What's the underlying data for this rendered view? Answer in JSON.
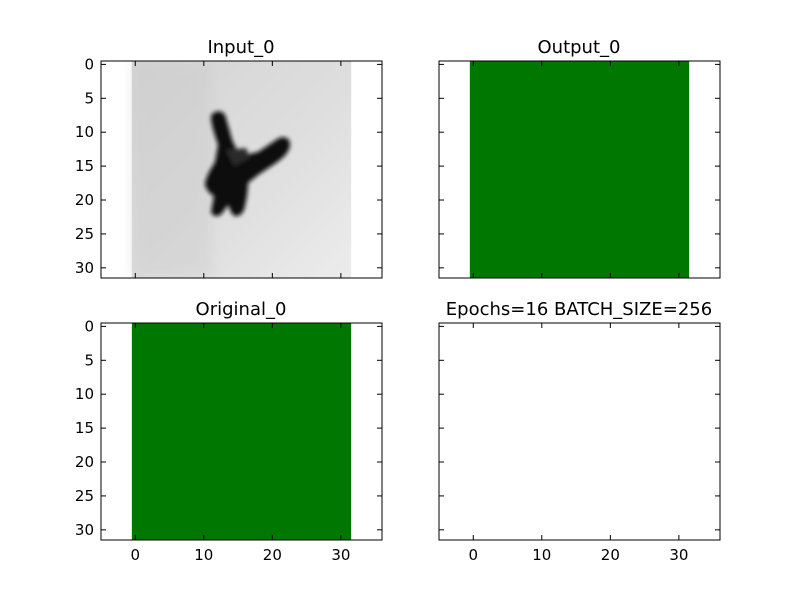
{
  "chart_data": [
    {
      "type": "heatmap",
      "title": "Input_0",
      "xlim": [
        -5,
        36
      ],
      "ylim": [
        31.5,
        -0.5
      ],
      "xticks": [
        0,
        10,
        20,
        30
      ],
      "yticks": [
        0,
        5,
        10,
        15,
        20,
        25,
        30
      ],
      "show_x_tick_labels": false,
      "show_y_tick_labels": true,
      "image_size": [
        32,
        32
      ],
      "colormap": "grayscale",
      "image_description": "grayscale photo of a dark aircraft silhouette on a light gray sky"
    },
    {
      "type": "heatmap",
      "title": "Output_0",
      "xlim": [
        -5,
        36
      ],
      "ylim": [
        31.5,
        -0.5
      ],
      "xticks": [
        0,
        10,
        20,
        30
      ],
      "yticks": [
        0,
        5,
        10,
        15,
        20,
        25,
        30
      ],
      "show_x_tick_labels": false,
      "show_y_tick_labels": false,
      "image_size": [
        32,
        32
      ],
      "fill_color": "#007700"
    },
    {
      "type": "heatmap",
      "title": "Original_0",
      "xlim": [
        -5,
        36
      ],
      "ylim": [
        31.5,
        -0.5
      ],
      "xticks": [
        0,
        10,
        20,
        30
      ],
      "yticks": [
        0,
        5,
        10,
        15,
        20,
        25,
        30
      ],
      "show_x_tick_labels": true,
      "show_y_tick_labels": true,
      "image_size": [
        32,
        32
      ],
      "fill_color": "#007700"
    },
    {
      "type": "heatmap",
      "title": "Epochs=16 BATCH_SIZE=256",
      "xlim": [
        -5,
        36
      ],
      "ylim": [
        31.5,
        -0.5
      ],
      "xticks": [
        0,
        10,
        20,
        30
      ],
      "yticks": [
        0,
        5,
        10,
        15,
        20,
        25,
        30
      ],
      "show_x_tick_labels": true,
      "show_y_tick_labels": false,
      "image_size": null
    }
  ]
}
